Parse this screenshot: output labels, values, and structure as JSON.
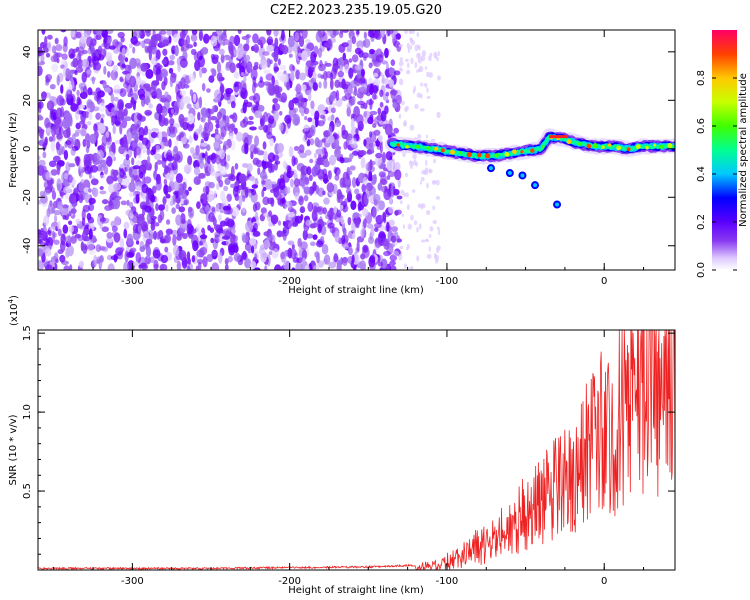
{
  "figure_title": "C2E2.2023.235.19.05.G20",
  "chart_data": [
    {
      "type": "heatmap",
      "xlabel": "Height of straight line (km)",
      "ylabel": "Frequency (Hz)",
      "xlim": [
        -360,
        45
      ],
      "ylim": [
        -50,
        49
      ],
      "xticks": [
        -300,
        -200,
        -100,
        0
      ],
      "xtick_labels": [
        "-300",
        "-200",
        "-100",
        "0"
      ],
      "yticks": [
        -40,
        -20,
        0,
        20,
        40
      ],
      "ytick_labels": [
        "-40",
        "-20",
        "0",
        "20",
        "40"
      ],
      "colorbar": {
        "label": "Normalized spectral amplitude",
        "range": [
          0,
          1
        ],
        "ticks": [
          0.0,
          0.2,
          0.4,
          0.6,
          0.8
        ],
        "tick_labels": [
          "0.0",
          "0.2",
          "0.4",
          "0.6",
          "0.8"
        ],
        "colormap": [
          "#ffffff",
          "#ddc8ff",
          "#8a3cf0",
          "#5a00ff",
          "#0000ff",
          "#00c8ff",
          "#00ff90",
          "#40ff00",
          "#c8ff00",
          "#ffc800",
          "#ff4000",
          "#ff0066"
        ]
      },
      "signal_trace": {
        "x": [
          -135,
          -120,
          -110,
          -100,
          -90,
          -80,
          -70,
          -60,
          -50,
          -40,
          -35,
          -25,
          -15,
          -5,
          5,
          15,
          25,
          35,
          45
        ],
        "y": [
          2,
          1,
          0,
          -1,
          -2,
          -3,
          -3,
          -2,
          -1,
          0,
          5,
          4,
          2,
          1,
          1,
          0,
          1,
          1,
          1
        ]
      },
      "noise_region_x": [
        -360,
        -130
      ],
      "grid": false
    },
    {
      "type": "line",
      "xlabel": "Height of straight line (km)",
      "ylabel": "SNR (10 * v/v)",
      "y_multiplier_label": "(x10",
      "y_multiplier_exp": "4",
      "y_multiplier_close": ")",
      "xlim": [
        -360,
        45
      ],
      "ylim": [
        0,
        1.52
      ],
      "xticks": [
        -300,
        -200,
        -100,
        0
      ],
      "xtick_labels": [
        "-300",
        "-200",
        "-100",
        "0"
      ],
      "yticks": [
        0.5,
        1.0,
        1.5
      ],
      "ytick_labels": [
        "0.5",
        "1.0",
        "1.5"
      ],
      "series": [
        {
          "color": "#ee2222",
          "x": [
            -360,
            -300,
            -250,
            -200,
            -150,
            -120,
            -110,
            -100,
            -90,
            -80,
            -70,
            -60,
            -50,
            -40,
            -30,
            -20,
            -10,
            0,
            10,
            20,
            30,
            40,
            45
          ],
          "y": [
            0.01,
            0.01,
            0.01,
            0.015,
            0.02,
            0.03,
            0.05,
            0.08,
            0.13,
            0.18,
            0.24,
            0.32,
            0.42,
            0.52,
            0.62,
            0.72,
            0.85,
            1.0,
            1.15,
            1.3,
            1.4,
            1.46,
            1.48
          ]
        }
      ],
      "grid": false
    }
  ]
}
